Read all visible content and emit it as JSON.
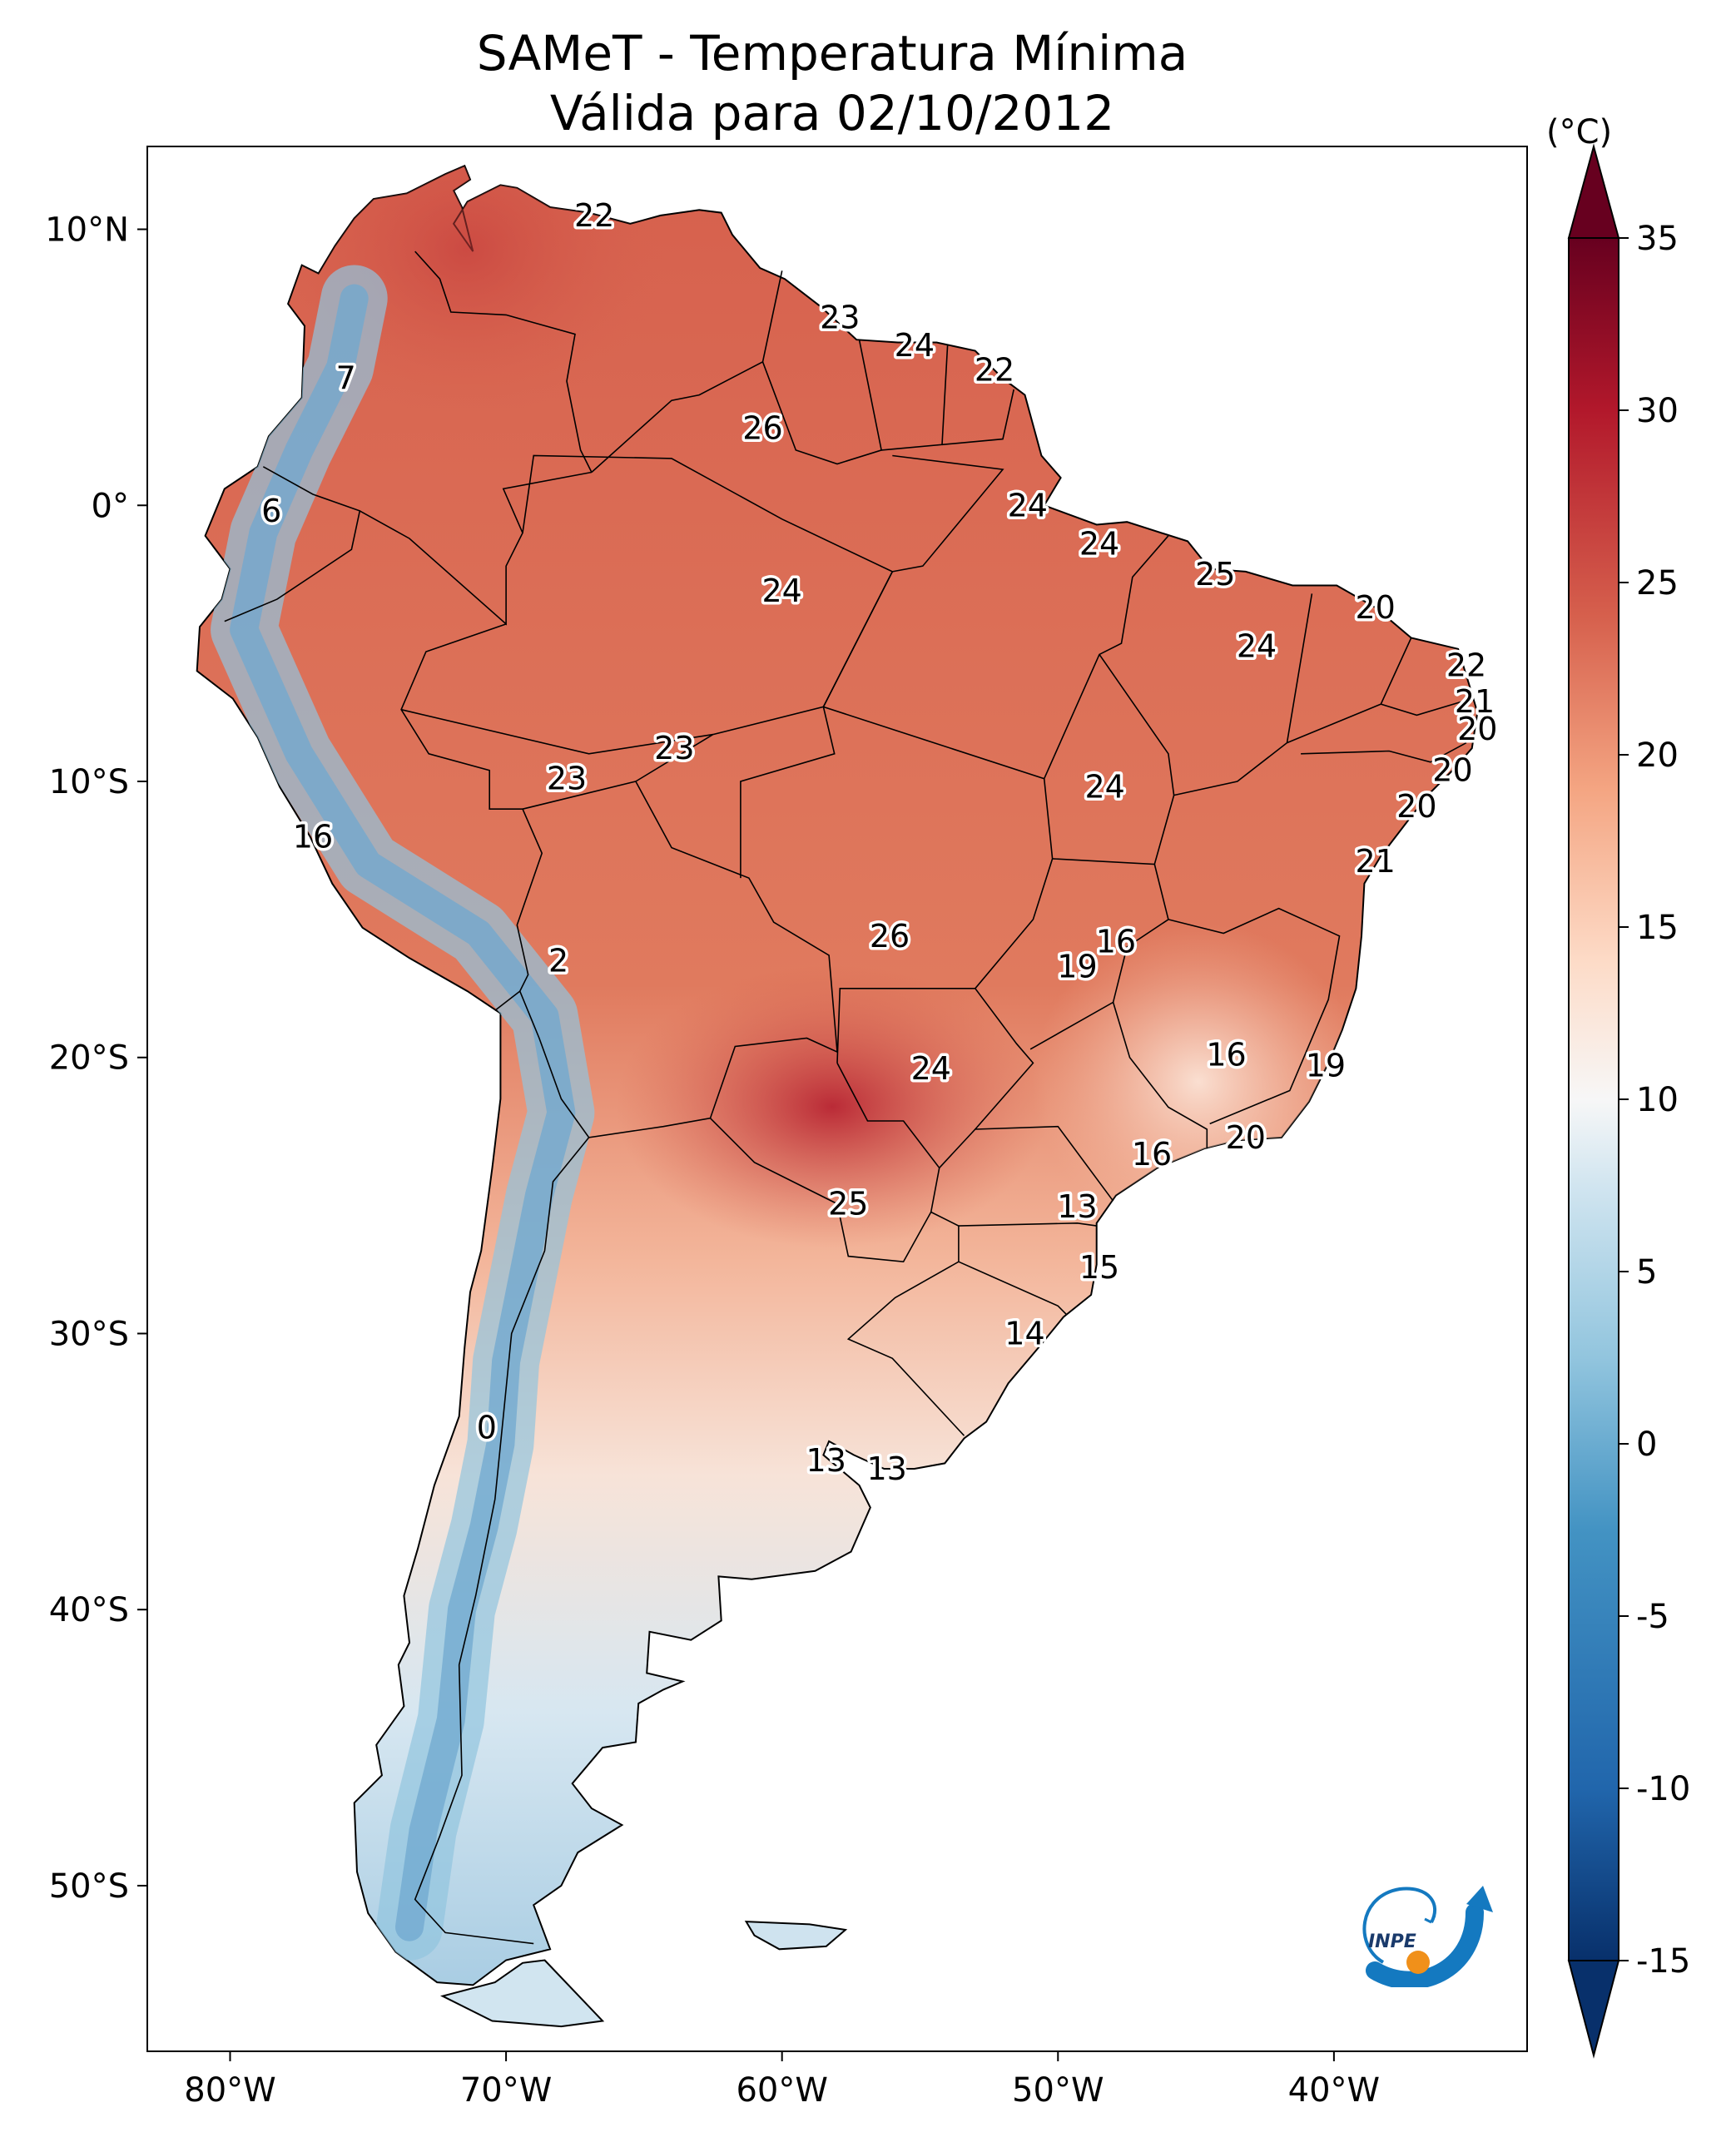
{
  "title": {
    "line1": "SAMeT - Temperatura Mínima",
    "line2": "Válida para 02/10/2012"
  },
  "map": {
    "lon_range": [
      -83,
      -33
    ],
    "lat_range": [
      -56,
      13
    ],
    "lon_ticks": [
      {
        "value": -80,
        "label": "80°W"
      },
      {
        "value": -70,
        "label": "70°W"
      },
      {
        "value": -60,
        "label": "60°W"
      },
      {
        "value": -50,
        "label": "50°W"
      },
      {
        "value": -40,
        "label": "40°W"
      }
    ],
    "lat_ticks": [
      {
        "value": 10,
        "label": "10°N"
      },
      {
        "value": 0,
        "label": "0°"
      },
      {
        "value": -10,
        "label": "10°S"
      },
      {
        "value": -20,
        "label": "20°S"
      },
      {
        "value": -30,
        "label": "30°S"
      },
      {
        "value": -40,
        "label": "40°S"
      },
      {
        "value": -50,
        "label": "50°S"
      }
    ],
    "station_values": [
      {
        "lon": -66.8,
        "lat": 10.5,
        "value": "22"
      },
      {
        "lon": -75.8,
        "lat": 4.6,
        "value": "7"
      },
      {
        "lon": -78.5,
        "lat": -0.2,
        "value": "6"
      },
      {
        "lon": -57.9,
        "lat": 6.8,
        "value": "23"
      },
      {
        "lon": -55.2,
        "lat": 5.8,
        "value": "24"
      },
      {
        "lon": -52.3,
        "lat": 4.9,
        "value": "22"
      },
      {
        "lon": -60.7,
        "lat": 2.8,
        "value": "26"
      },
      {
        "lon": -51.1,
        "lat": 0.0,
        "value": "24"
      },
      {
        "lon": -60.0,
        "lat": -3.1,
        "value": "24"
      },
      {
        "lon": -48.5,
        "lat": -1.4,
        "value": "24"
      },
      {
        "lon": -44.3,
        "lat": -2.5,
        "value": "25"
      },
      {
        "lon": -38.5,
        "lat": -3.7,
        "value": "20"
      },
      {
        "lon": -42.8,
        "lat": -5.1,
        "value": "24"
      },
      {
        "lon": -35.2,
        "lat": -5.8,
        "value": "22"
      },
      {
        "lon": -34.9,
        "lat": -7.1,
        "value": "21"
      },
      {
        "lon": -34.8,
        "lat": -8.1,
        "value": "20"
      },
      {
        "lon": -63.9,
        "lat": -8.8,
        "value": "23"
      },
      {
        "lon": -67.8,
        "lat": -9.9,
        "value": "23"
      },
      {
        "lon": -48.3,
        "lat": -10.2,
        "value": "24"
      },
      {
        "lon": -35.7,
        "lat": -9.6,
        "value": "20"
      },
      {
        "lon": -37.0,
        "lat": -10.9,
        "value": "20"
      },
      {
        "lon": -38.5,
        "lat": -12.9,
        "value": "21"
      },
      {
        "lon": -77.0,
        "lat": -12.0,
        "value": "16"
      },
      {
        "lon": -68.1,
        "lat": -16.5,
        "value": "2"
      },
      {
        "lon": -56.1,
        "lat": -15.6,
        "value": "26"
      },
      {
        "lon": -47.9,
        "lat": -15.8,
        "value": "16"
      },
      {
        "lon": -49.3,
        "lat": -16.7,
        "value": "19"
      },
      {
        "lon": -43.9,
        "lat": -19.9,
        "value": "16"
      },
      {
        "lon": -40.3,
        "lat": -20.3,
        "value": "19"
      },
      {
        "lon": -54.6,
        "lat": -20.4,
        "value": "24"
      },
      {
        "lon": -43.2,
        "lat": -22.9,
        "value": "20"
      },
      {
        "lon": -46.6,
        "lat": -23.5,
        "value": "16"
      },
      {
        "lon": -57.6,
        "lat": -25.3,
        "value": "25"
      },
      {
        "lon": -49.3,
        "lat": -25.4,
        "value": "13"
      },
      {
        "lon": -48.5,
        "lat": -27.6,
        "value": "15"
      },
      {
        "lon": -51.2,
        "lat": -30.0,
        "value": "14"
      },
      {
        "lon": -70.7,
        "lat": -33.4,
        "value": "0"
      },
      {
        "lon": -58.4,
        "lat": -34.6,
        "value": "13"
      },
      {
        "lon": -56.2,
        "lat": -34.9,
        "value": "13"
      }
    ]
  },
  "colorbar": {
    "unit": "(°C)",
    "min": -15,
    "max": 35,
    "ticks": [
      "35",
      "30",
      "25",
      "20",
      "15",
      "10",
      "5",
      "0",
      "-5",
      "-10",
      "-15"
    ],
    "colors": {
      "very_cold": "#08306b",
      "cold": "#2166ac",
      "cool": "#92c5de",
      "neutral": "#f7f7f7",
      "mild": "#fddbc7",
      "warm": "#ef8a62",
      "hot": "#d6604d",
      "very_hot": "#b2182b",
      "extreme": "#67001f"
    }
  },
  "logo": {
    "text": "INPE",
    "colors": {
      "swirl": "#1479c0",
      "dot": "#f0901a"
    }
  }
}
